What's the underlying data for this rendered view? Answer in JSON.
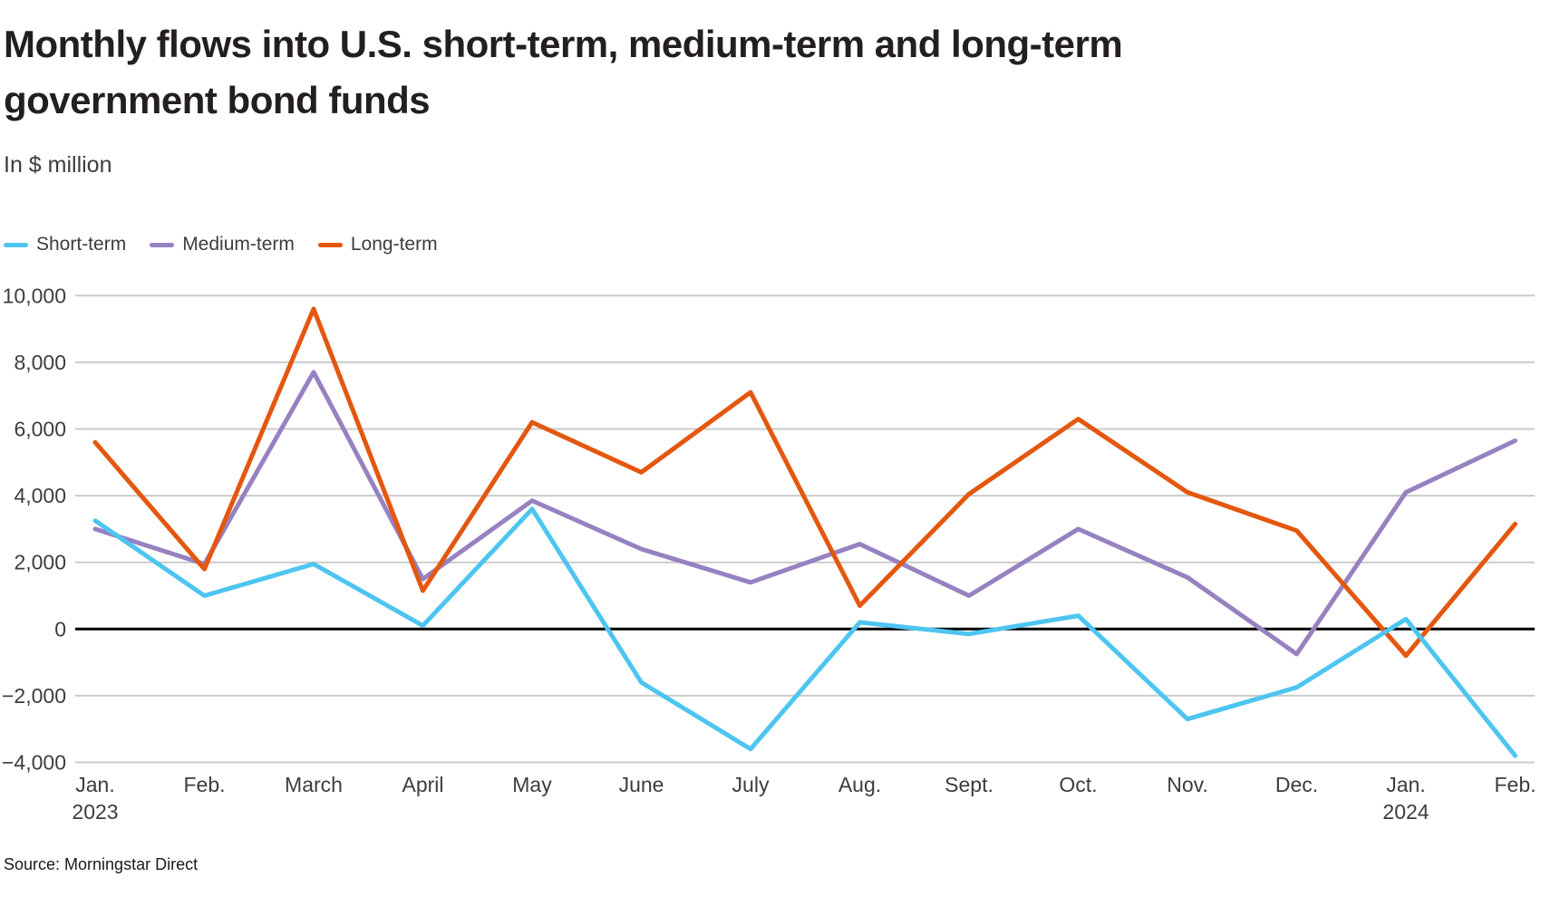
{
  "page": {
    "title_lines": [
      "Monthly flows into U.S. short-term, medium-term and long-term",
      "government bond funds"
    ],
    "subtitle": "In $ million",
    "source": "Source: Morningstar Direct"
  },
  "chart_data": {
    "type": "line",
    "title": "Monthly flows into U.S. short-term, medium-term and long-term government bond funds",
    "subtitle": "In $ million",
    "source": "Source: Morningstar Direct",
    "unit": "$ million",
    "categories": [
      {
        "label": "Jan.",
        "sub": "2023"
      },
      {
        "label": "Feb.",
        "sub": ""
      },
      {
        "label": "March",
        "sub": ""
      },
      {
        "label": "April",
        "sub": ""
      },
      {
        "label": "May",
        "sub": ""
      },
      {
        "label": "June",
        "sub": ""
      },
      {
        "label": "July",
        "sub": ""
      },
      {
        "label": "Aug.",
        "sub": ""
      },
      {
        "label": "Sept.",
        "sub": ""
      },
      {
        "label": "Oct.",
        "sub": ""
      },
      {
        "label": "Nov.",
        "sub": ""
      },
      {
        "label": "Dec.",
        "sub": ""
      },
      {
        "label": "Jan.",
        "sub": "2024"
      },
      {
        "label": "Feb.",
        "sub": ""
      }
    ],
    "y_ticks": [
      {
        "v": 10000,
        "label": "10,000"
      },
      {
        "v": 8000,
        "label": "8,000"
      },
      {
        "v": 6000,
        "label": "6,000"
      },
      {
        "v": 4000,
        "label": "4,000"
      },
      {
        "v": 2000,
        "label": "2,000"
      },
      {
        "v": 0,
        "label": "0"
      },
      {
        "v": -2000,
        "label": "−2,000"
      },
      {
        "v": -4000,
        "label": "−4,000"
      }
    ],
    "ylim": [
      -4000,
      10000
    ],
    "grid": true,
    "zero_baseline": true,
    "legend_position": "top-left",
    "colors": {
      "short_term": "#4ec5f1",
      "medium_term": "#9682c1",
      "long_term": "#e4570f",
      "gridline": "#cbcbcb",
      "zero_line": "#000000"
    },
    "series": [
      {
        "name": "Short-term",
        "color": "#4ec5f1",
        "values": [
          3250,
          1000,
          1950,
          100,
          3600,
          -1600,
          -3600,
          200,
          -150,
          400,
          -2700,
          -1750,
          300,
          -3800
        ]
      },
      {
        "name": "Medium-term",
        "color": "#9682c1",
        "values": [
          3000,
          1950,
          7700,
          1500,
          3850,
          2400,
          1400,
          2550,
          1000,
          3000,
          1550,
          -750,
          4100,
          5650
        ]
      },
      {
        "name": "Long-term",
        "color": "#e4570f",
        "values": [
          5600,
          1800,
          9600,
          1150,
          6200,
          4700,
          7100,
          700,
          4050,
          6300,
          4100,
          2950,
          -800,
          3150
        ]
      }
    ]
  }
}
